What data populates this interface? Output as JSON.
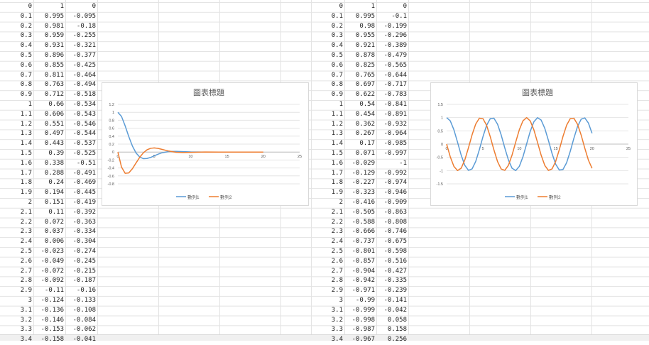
{
  "sheets": [
    {
      "columns": [
        [
          "0",
          "0.1",
          "0.2",
          "0.3",
          "0.4",
          "0.5",
          "0.6",
          "0.7",
          "0.8",
          "0.9",
          "1",
          "1.1",
          "1.2",
          "1.3",
          "1.4",
          "1.5",
          "1.6",
          "1.7",
          "1.8",
          "1.9",
          "2",
          "2.1",
          "2.2",
          "2.3",
          "2.4",
          "2.5",
          "2.6",
          "2.7",
          "2.8",
          "2.9",
          "3",
          "3.1",
          "3.2",
          "3.3",
          "3.4"
        ],
        [
          "1",
          "0.995",
          "0.981",
          "0.959",
          "0.931",
          "0.896",
          "0.855",
          "0.811",
          "0.763",
          "0.712",
          "0.66",
          "0.606",
          "0.551",
          "0.497",
          "0.443",
          "0.39",
          "0.338",
          "0.288",
          "0.24",
          "0.194",
          "0.151",
          "0.11",
          "0.072",
          "0.037",
          "0.006",
          "-0.023",
          "-0.049",
          "-0.072",
          "-0.092",
          "-0.11",
          "-0.124",
          "-0.136",
          "-0.146",
          "-0.153",
          "-0.158"
        ],
        [
          "0",
          "-0.095",
          "-0.18",
          "-0.255",
          "-0.321",
          "-0.377",
          "-0.425",
          "-0.464",
          "-0.494",
          "-0.518",
          "-0.534",
          "-0.543",
          "-0.546",
          "-0.544",
          "-0.537",
          "-0.525",
          "-0.51",
          "-0.491",
          "-0.469",
          "-0.445",
          "-0.419",
          "-0.392",
          "-0.363",
          "-0.334",
          "-0.304",
          "-0.274",
          "-0.245",
          "-0.215",
          "-0.187",
          "-0.16",
          "-0.133",
          "-0.108",
          "-0.084",
          "-0.062",
          "-0.041"
        ]
      ]
    },
    {
      "columns": [
        [
          "0",
          "0.1",
          "0.2",
          "0.3",
          "0.4",
          "0.5",
          "0.6",
          "0.7",
          "0.8",
          "0.9",
          "1",
          "1.1",
          "1.2",
          "1.3",
          "1.4",
          "1.5",
          "1.6",
          "1.7",
          "1.8",
          "1.9",
          "2",
          "2.1",
          "2.2",
          "2.3",
          "2.4",
          "2.5",
          "2.6",
          "2.7",
          "2.8",
          "2.9",
          "3",
          "3.1",
          "3.2",
          "3.3",
          "3.4"
        ],
        [
          "1",
          "0.995",
          "0.98",
          "0.955",
          "0.921",
          "0.878",
          "0.825",
          "0.765",
          "0.697",
          "0.622",
          "0.54",
          "0.454",
          "0.362",
          "0.267",
          "0.17",
          "0.071",
          "-0.029",
          "-0.129",
          "-0.227",
          "-0.323",
          "-0.416",
          "-0.505",
          "-0.588",
          "-0.666",
          "-0.737",
          "-0.801",
          "-0.857",
          "-0.904",
          "-0.942",
          "-0.971",
          "-0.99",
          "-0.999",
          "-0.998",
          "-0.987",
          "-0.967"
        ],
        [
          "0",
          "-0.1",
          "-0.199",
          "-0.296",
          "-0.389",
          "-0.479",
          "-0.565",
          "-0.644",
          "-0.717",
          "-0.783",
          "-0.841",
          "-0.891",
          "-0.932",
          "-0.964",
          "-0.985",
          "-0.997",
          "-1",
          "-0.992",
          "-0.974",
          "-0.946",
          "-0.909",
          "-0.863",
          "-0.808",
          "-0.746",
          "-0.675",
          "-0.598",
          "-0.516",
          "-0.427",
          "-0.335",
          "-0.239",
          "-0.141",
          "-0.042",
          "0.058",
          "0.158",
          "0.256"
        ]
      ]
    }
  ],
  "chart_data": [
    {
      "type": "scatter",
      "title": "圖表標題",
      "xlim": [
        0,
        25
      ],
      "ylim": [
        -0.8,
        1.2
      ],
      "xticks": [
        "0",
        "5",
        "10",
        "15",
        "20",
        "25"
      ],
      "yticks": [
        "1.2",
        "1",
        "0.8",
        "0.6",
        "0.4",
        "0.2",
        "0",
        "-0.2",
        "-0.4",
        "-0.6",
        "-0.8"
      ],
      "grid": true,
      "legend": "bottom",
      "colors": [
        "#5b9bd5",
        "#ed7d31"
      ],
      "series": [
        {
          "name": "數列1",
          "x": [
            0,
            0.5,
            1,
            1.5,
            2,
            2.5,
            3,
            3.5,
            4,
            4.5,
            5,
            5.5,
            6,
            7,
            8,
            9,
            10,
            12,
            14,
            16,
            18,
            20
          ],
          "y": [
            1,
            0.896,
            0.66,
            0.39,
            0.151,
            -0.023,
            -0.124,
            -0.165,
            -0.162,
            -0.135,
            -0.096,
            -0.056,
            -0.022,
            0.014,
            0.018,
            0.01,
            0.003,
            -0.001,
            0,
            0,
            0,
            0
          ]
        },
        {
          "name": "數列2",
          "x": [
            0,
            0.5,
            1,
            1.5,
            2,
            2.5,
            3,
            3.5,
            4,
            4.5,
            5,
            5.5,
            6,
            7,
            8,
            9,
            10,
            12,
            14,
            16,
            18,
            20
          ],
          "y": [
            0,
            -0.377,
            -0.534,
            -0.525,
            -0.419,
            -0.274,
            -0.133,
            -0.02,
            0.055,
            0.094,
            0.104,
            0.093,
            0.071,
            0.025,
            -0.005,
            -0.012,
            -0.008,
            0.001,
            0,
            0,
            0,
            0
          ]
        }
      ]
    },
    {
      "type": "scatter",
      "title": "圖表標題",
      "xlim": [
        0,
        25
      ],
      "ylim": [
        -1.5,
        1.5
      ],
      "xticks": [
        "0",
        "5",
        "10",
        "15",
        "20",
        "25"
      ],
      "yticks": [
        "1.5",
        "1",
        "0.5",
        "0",
        "-0.5",
        "-1",
        "-1.5"
      ],
      "grid": true,
      "legend": "bottom",
      "colors": [
        "#5b9bd5",
        "#ed7d31"
      ],
      "series": [
        {
          "name": "數列1",
          "x": [
            0,
            0.5,
            1,
            1.5,
            2,
            2.5,
            3,
            3.5,
            4,
            4.5,
            5,
            5.5,
            6,
            6.5,
            7,
            7.5,
            8,
            8.5,
            9,
            9.5,
            10,
            10.5,
            11,
            11.5,
            12,
            12.5,
            13,
            13.5,
            14,
            14.5,
            15,
            15.5,
            16,
            16.5,
            17,
            17.5,
            18,
            18.5,
            19,
            19.5,
            20
          ],
          "y": [
            1,
            0.878,
            0.54,
            0.071,
            -0.416,
            -0.801,
            -0.99,
            -0.936,
            -0.654,
            -0.211,
            0.284,
            0.709,
            0.96,
            0.977,
            0.754,
            0.347,
            -0.146,
            -0.602,
            -0.911,
            -0.997,
            -0.839,
            -0.476,
            0.004,
            0.483,
            0.844,
            0.998,
            0.907,
            0.594,
            0.137,
            -0.355,
            -0.76,
            -0.979,
            -0.958,
            -0.702,
            -0.275,
            0.219,
            0.66,
            0.939,
            0.989,
            0.795,
            0.408
          ]
        },
        {
          "name": "數列2",
          "x": [
            0,
            0.5,
            1,
            1.5,
            2,
            2.5,
            3,
            3.5,
            4,
            4.5,
            5,
            5.5,
            6,
            6.5,
            7,
            7.5,
            8,
            8.5,
            9,
            9.5,
            10,
            10.5,
            11,
            11.5,
            12,
            12.5,
            13,
            13.5,
            14,
            14.5,
            15,
            15.5,
            16,
            16.5,
            17,
            17.5,
            18,
            18.5,
            19,
            19.5,
            20
          ],
          "y": [
            0,
            -0.479,
            -0.841,
            -0.997,
            -0.909,
            -0.598,
            -0.141,
            0.351,
            0.757,
            0.978,
            0.959,
            0.706,
            0.279,
            -0.215,
            -0.657,
            -0.938,
            -0.989,
            -0.798,
            -0.412,
            0.075,
            0.544,
            0.88,
            1,
            0.876,
            0.537,
            0.066,
            -0.42,
            -0.804,
            -0.991,
            -0.935,
            -0.65,
            -0.207,
            0.288,
            0.712,
            0.961,
            0.976,
            0.751,
            0.342,
            -0.151,
            -0.606,
            -0.913
          ]
        }
      ]
    }
  ]
}
